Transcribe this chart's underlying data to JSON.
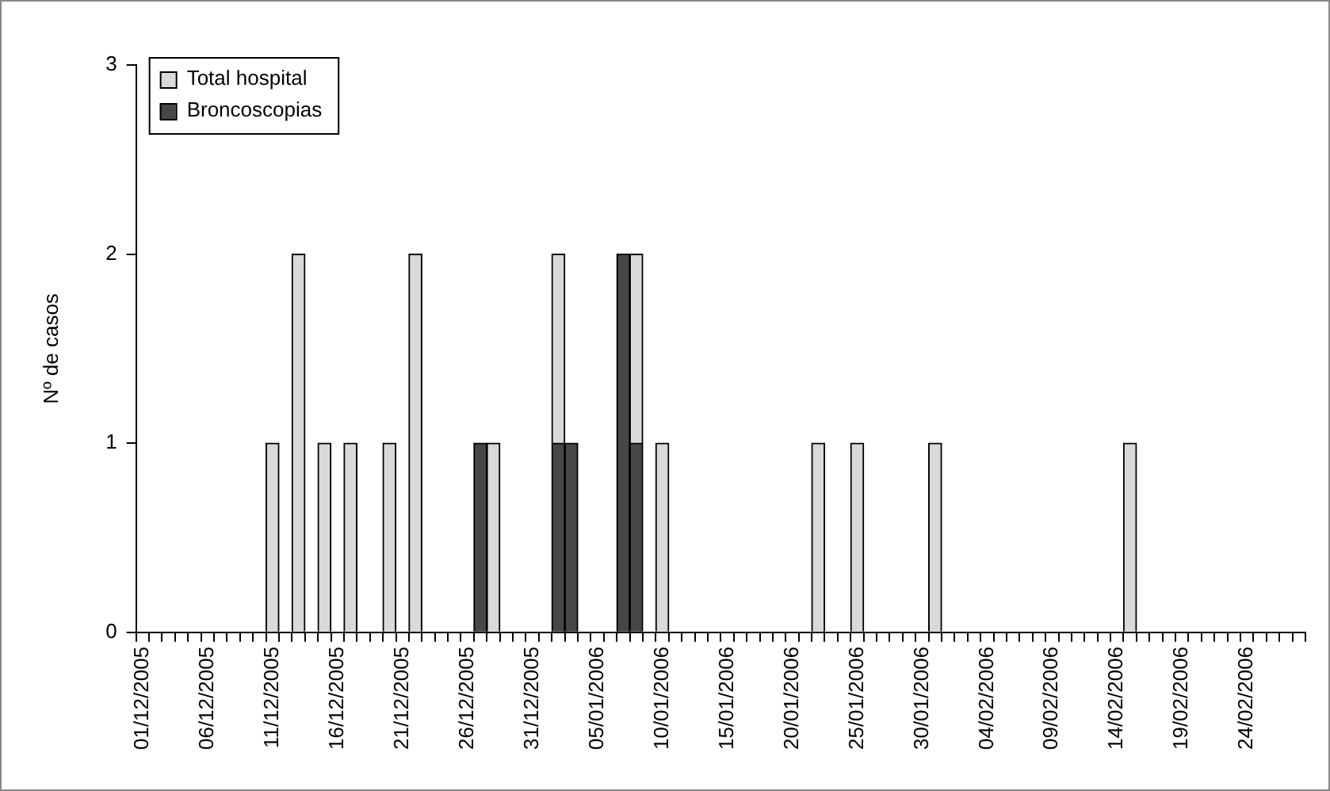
{
  "chart_data": {
    "type": "bar",
    "ylabel": "Nº de casos",
    "stacked": true,
    "legend": "top left",
    "categories": [
      "01/12/2005",
      null,
      null,
      null,
      null,
      "06/12/2005",
      null,
      null,
      null,
      null,
      "11/12/2005",
      null,
      null,
      null,
      null,
      "16/12/2005",
      null,
      null,
      null,
      null,
      "21/12/2005",
      null,
      null,
      null,
      null,
      "26/12/2005",
      null,
      null,
      null,
      null,
      "31/12/2005",
      null,
      null,
      null,
      null,
      "05/01/2006",
      null,
      null,
      null,
      null,
      "10/01/2006",
      null,
      null,
      null,
      null,
      "15/01/2006",
      null,
      null,
      null,
      null,
      "20/01/2006",
      null,
      null,
      null,
      null,
      "25/01/2006",
      null,
      null,
      null,
      null,
      "30/01/2006",
      null,
      null,
      null,
      null,
      "04/02/2006",
      null,
      null,
      null,
      null,
      "09/02/2006",
      null,
      null,
      null,
      null,
      "14/02/2006",
      null,
      null,
      null,
      null,
      "19/02/2006",
      null,
      null,
      null,
      null,
      "24/02/2006",
      null,
      null,
      null,
      null
    ],
    "series": [
      {
        "name": "Broncoscopias",
        "color": "#474747",
        "values": [
          0,
          0,
          0,
          0,
          0,
          0,
          0,
          0,
          0,
          0,
          0,
          0,
          0,
          0,
          0,
          0,
          0,
          0,
          0,
          0,
          0,
          0,
          0,
          0,
          0,
          0,
          1,
          0,
          0,
          0,
          0,
          0,
          1,
          1,
          0,
          0,
          0,
          2,
          1,
          0,
          0,
          0,
          0,
          0,
          0,
          0,
          0,
          0,
          0,
          0,
          0,
          0,
          0,
          0,
          0,
          0,
          0,
          0,
          0,
          0,
          0,
          0,
          0,
          0,
          0,
          0,
          0,
          0,
          0,
          0,
          0,
          0,
          0,
          0,
          0,
          0,
          0,
          0,
          0,
          0,
          0,
          0,
          0,
          0,
          0,
          0,
          0,
          0,
          0,
          0
        ]
      },
      {
        "name": "Total hospital",
        "color": "#d9d9d9",
        "values": [
          0,
          0,
          0,
          0,
          0,
          0,
          0,
          0,
          0,
          0,
          1,
          0,
          2,
          0,
          1,
          0,
          1,
          0,
          0,
          1,
          0,
          2,
          0,
          0,
          0,
          0,
          0,
          1,
          0,
          0,
          0,
          0,
          1,
          0,
          0,
          0,
          0,
          0,
          1,
          0,
          1,
          0,
          0,
          0,
          0,
          0,
          0,
          0,
          0,
          0,
          0,
          0,
          1,
          0,
          0,
          1,
          0,
          0,
          0,
          0,
          0,
          1,
          0,
          0,
          0,
          0,
          0,
          0,
          0,
          0,
          0,
          0,
          0,
          0,
          0,
          0,
          1,
          0,
          0,
          0,
          0,
          0,
          0,
          0,
          0,
          0,
          0,
          0,
          0,
          0
        ]
      }
    ],
    "ylim": [
      0,
      3
    ],
    "yticks": [
      0,
      1,
      2,
      3
    ]
  }
}
